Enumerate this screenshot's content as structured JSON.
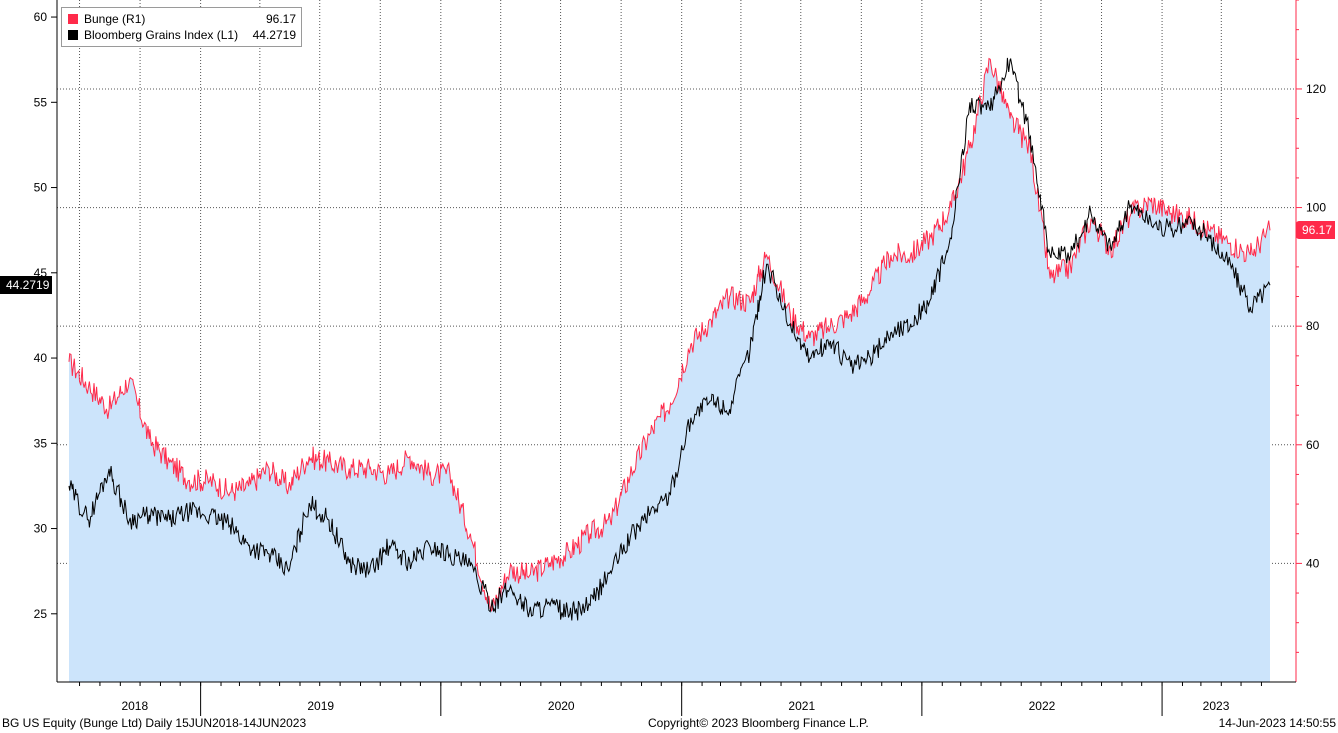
{
  "chart_data": {
    "type": "line",
    "title": "",
    "x_range": [
      "2018-06-15",
      "2023-06-14"
    ],
    "x_ticks": [
      "2018",
      "2019",
      "2020",
      "2021",
      "2022",
      "2023"
    ],
    "left_axis": {
      "ylim": [
        21,
        61
      ],
      "ticks": [
        25,
        30,
        35,
        40,
        45,
        50,
        55,
        60
      ]
    },
    "right_axis": {
      "ylim": [
        20,
        135
      ],
      "ticks": [
        40,
        60,
        80,
        100,
        120
      ]
    },
    "grid": true,
    "legend_position": "top-left",
    "series": [
      {
        "name": "Bunge (R1)",
        "axis": "right",
        "color": "#ff2a4a",
        "fill": "#cce4fb",
        "last": "96.17",
        "points": [
          [
            "2018-06-15",
            74
          ],
          [
            "2018-07-15",
            70
          ],
          [
            "2018-08-15",
            66
          ],
          [
            "2018-09-15",
            71
          ],
          [
            "2018-10-15",
            61
          ],
          [
            "2018-11-15",
            57
          ],
          [
            "2018-12-15",
            54
          ],
          [
            "2019-01-15",
            54
          ],
          [
            "2019-02-15",
            52
          ],
          [
            "2019-03-15",
            53
          ],
          [
            "2019-04-15",
            56
          ],
          [
            "2019-05-15",
            53
          ],
          [
            "2019-06-15",
            58
          ],
          [
            "2019-07-15",
            57
          ],
          [
            "2019-08-15",
            56
          ],
          [
            "2019-09-15",
            56
          ],
          [
            "2019-10-15",
            55
          ],
          [
            "2019-11-15",
            58
          ],
          [
            "2019-12-15",
            55
          ],
          [
            "2020-01-15",
            55
          ],
          [
            "2020-02-15",
            45
          ],
          [
            "2020-03-18",
            32
          ],
          [
            "2020-04-15",
            39
          ],
          [
            "2020-05-15",
            38
          ],
          [
            "2020-06-15",
            40
          ],
          [
            "2020-07-15",
            42
          ],
          [
            "2020-08-15",
            45
          ],
          [
            "2020-09-15",
            47
          ],
          [
            "2020-10-15",
            55
          ],
          [
            "2020-11-15",
            62
          ],
          [
            "2020-12-15",
            67
          ],
          [
            "2021-01-15",
            77
          ],
          [
            "2021-02-15",
            81
          ],
          [
            "2021-03-15",
            85
          ],
          [
            "2021-04-15",
            84
          ],
          [
            "2021-05-10",
            92
          ],
          [
            "2021-06-15",
            82
          ],
          [
            "2021-07-15",
            78
          ],
          [
            "2021-08-15",
            80
          ],
          [
            "2021-09-15",
            82
          ],
          [
            "2021-10-15",
            86
          ],
          [
            "2021-11-15",
            92
          ],
          [
            "2021-12-15",
            92
          ],
          [
            "2022-01-15",
            95
          ],
          [
            "2022-02-15",
            100
          ],
          [
            "2022-03-15",
            110
          ],
          [
            "2022-04-15",
            125
          ],
          [
            "2022-05-15",
            115
          ],
          [
            "2022-06-15",
            110
          ],
          [
            "2022-07-15",
            88
          ],
          [
            "2022-08-15",
            90
          ],
          [
            "2022-09-15",
            98
          ],
          [
            "2022-10-15",
            93
          ],
          [
            "2022-11-15",
            99
          ],
          [
            "2022-12-15",
            101
          ],
          [
            "2023-01-15",
            99
          ],
          [
            "2023-02-15",
            98
          ],
          [
            "2023-03-15",
            96
          ],
          [
            "2023-04-15",
            94
          ],
          [
            "2023-05-15",
            92
          ],
          [
            "2023-06-14",
            96.17
          ]
        ]
      },
      {
        "name": "Bloomberg Grains Index (L1)",
        "axis": "left",
        "color": "#000000",
        "last": "44.2719",
        "points": [
          [
            "2018-06-15",
            32.5
          ],
          [
            "2018-07-15",
            30.5
          ],
          [
            "2018-08-15",
            33.5
          ],
          [
            "2018-09-15",
            30.5
          ],
          [
            "2018-10-15",
            30.8
          ],
          [
            "2018-11-15",
            30.5
          ],
          [
            "2018-12-15",
            31.0
          ],
          [
            "2019-01-15",
            30.8
          ],
          [
            "2019-02-15",
            30.2
          ],
          [
            "2019-03-15",
            29.0
          ],
          [
            "2019-04-15",
            28.5
          ],
          [
            "2019-05-15",
            27.5
          ],
          [
            "2019-06-15",
            31.5
          ],
          [
            "2019-07-15",
            30.5
          ],
          [
            "2019-08-15",
            28.0
          ],
          [
            "2019-09-15",
            27.5
          ],
          [
            "2019-10-15",
            29.0
          ],
          [
            "2019-11-15",
            28.0
          ],
          [
            "2019-12-15",
            29.0
          ],
          [
            "2020-01-15",
            28.5
          ],
          [
            "2020-02-15",
            27.8
          ],
          [
            "2020-03-18",
            25.5
          ],
          [
            "2020-04-15",
            26.5
          ],
          [
            "2020-05-15",
            25.2
          ],
          [
            "2020-06-15",
            25.5
          ],
          [
            "2020-07-15",
            25.0
          ],
          [
            "2020-08-15",
            25.5
          ],
          [
            "2020-09-15",
            27.5
          ],
          [
            "2020-10-15",
            29.5
          ],
          [
            "2020-11-15",
            31.0
          ],
          [
            "2020-12-15",
            32.0
          ],
          [
            "2021-01-15",
            36.5
          ],
          [
            "2021-02-15",
            37.5
          ],
          [
            "2021-03-15",
            37.0
          ],
          [
            "2021-04-15",
            40.5
          ],
          [
            "2021-05-10",
            45.5
          ],
          [
            "2021-06-15",
            42.0
          ],
          [
            "2021-07-15",
            40.0
          ],
          [
            "2021-08-15",
            41.0
          ],
          [
            "2021-09-15",
            39.5
          ],
          [
            "2021-10-15",
            40.0
          ],
          [
            "2021-11-15",
            41.5
          ],
          [
            "2021-12-15",
            42.0
          ],
          [
            "2022-01-15",
            43.5
          ],
          [
            "2022-02-15",
            47.0
          ],
          [
            "2022-03-15",
            55.0
          ],
          [
            "2022-04-15",
            54.5
          ],
          [
            "2022-05-15",
            57.5
          ],
          [
            "2022-06-15",
            53.0
          ],
          [
            "2022-07-15",
            46.0
          ],
          [
            "2022-08-15",
            46.0
          ],
          [
            "2022-09-15",
            48.5
          ],
          [
            "2022-10-15",
            46.5
          ],
          [
            "2022-11-15",
            49.0
          ],
          [
            "2022-12-15",
            48.0
          ],
          [
            "2023-01-15",
            47.5
          ],
          [
            "2023-02-15",
            48.0
          ],
          [
            "2023-03-15",
            47.0
          ],
          [
            "2023-04-15",
            45.5
          ],
          [
            "2023-05-15",
            43.0
          ],
          [
            "2023-06-14",
            44.2719
          ]
        ]
      }
    ]
  },
  "legend": {
    "bunge_label": "Bunge (R1)",
    "bunge_value": "96.17",
    "grains_label": "Bloomberg Grains Index (L1)",
    "grains_value": "44.2719"
  },
  "tags": {
    "left_last": "44.2719",
    "right_last": "96.17"
  },
  "footer": {
    "left": "BG US Equity (Bunge Ltd)  Daily 15JUN2018-14JUN2023",
    "center": "Copyright© 2023 Bloomberg Finance L.P.",
    "right": "14-Jun-2023 14:50:55"
  },
  "colors": {
    "bunge": "#ff2a4a",
    "grains": "#000000",
    "area": "#cce4fb",
    "grid": "#555555"
  }
}
